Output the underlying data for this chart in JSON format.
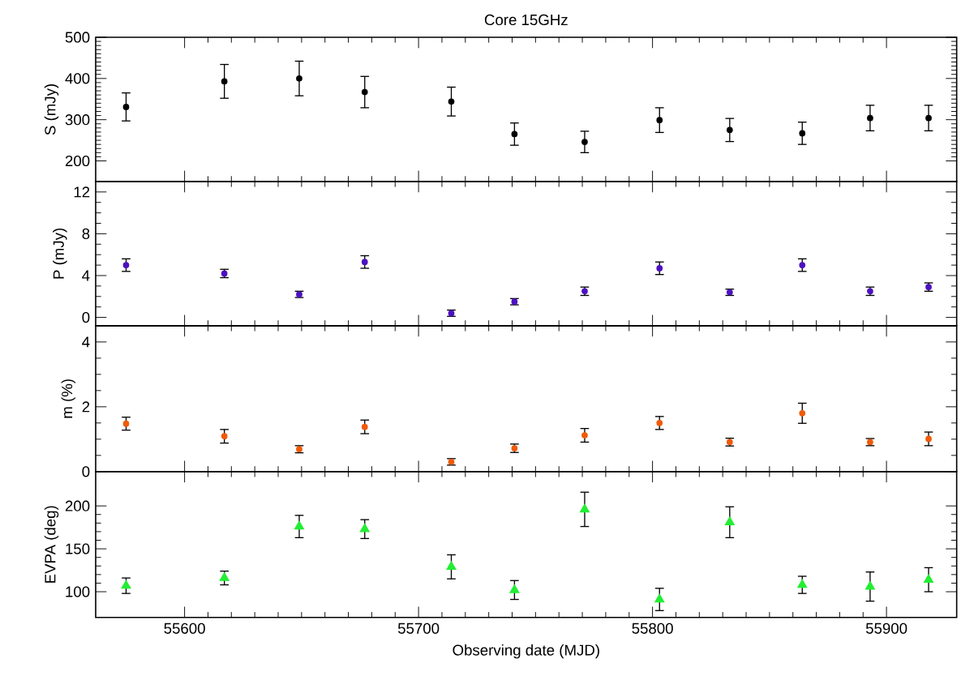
{
  "chart_data": [
    {
      "type": "scatter",
      "title": "Core 15GHz",
      "ylabel": "S (mJy)",
      "marker": "circle",
      "color": "#000000",
      "tick_labels": "y",
      "x": [
        55575,
        55617,
        55649,
        55677,
        55714,
        55741,
        55771,
        55803,
        55833,
        55864,
        55893,
        55918
      ],
      "values": [
        331,
        393,
        400,
        367,
        344,
        265,
        246,
        299,
        275,
        267,
        304,
        304
      ],
      "errors": [
        34,
        41,
        42,
        38,
        35,
        27,
        26,
        30,
        28,
        27,
        31,
        31
      ],
      "xlim": [
        55562,
        55930
      ],
      "xticks": [
        55600,
        55700,
        55800,
        55900
      ],
      "ylim": [
        150,
        500
      ],
      "yticks": [
        200,
        300,
        400,
        500
      ]
    },
    {
      "type": "scatter",
      "ylabel": "P (mJy)",
      "marker": "circle",
      "color": "#4c10c0",
      "tick_labels": "y",
      "x": [
        55575,
        55617,
        55649,
        55677,
        55714,
        55741,
        55771,
        55803,
        55833,
        55864,
        55893,
        55918
      ],
      "values": [
        5.0,
        4.2,
        2.2,
        5.3,
        0.4,
        1.5,
        2.5,
        4.7,
        2.4,
        5.0,
        2.5,
        2.9
      ],
      "errors": [
        0.6,
        0.4,
        0.3,
        0.6,
        0.3,
        0.3,
        0.4,
        0.6,
        0.3,
        0.6,
        0.4,
        0.4
      ],
      "xlim": [
        55562,
        55930
      ],
      "xticks": [
        55600,
        55700,
        55800,
        55900
      ],
      "ylim": [
        -0.8,
        13
      ],
      "yticks": [
        0,
        4,
        8,
        12
      ]
    },
    {
      "type": "scatter",
      "ylabel": "m (%)",
      "marker": "circle",
      "color": "#f05a0a",
      "tick_labels": "y",
      "x": [
        55575,
        55617,
        55649,
        55677,
        55714,
        55741,
        55771,
        55803,
        55833,
        55864,
        55893,
        55918
      ],
      "values": [
        1.48,
        1.09,
        0.69,
        1.38,
        0.3,
        0.72,
        1.12,
        1.5,
        0.91,
        1.8,
        0.91,
        1.01
      ],
      "errors": [
        0.2,
        0.21,
        0.11,
        0.21,
        0.1,
        0.13,
        0.21,
        0.2,
        0.12,
        0.31,
        0.11,
        0.21
      ],
      "xlim": [
        55562,
        55930
      ],
      "xticks": [
        55600,
        55700,
        55800,
        55900
      ],
      "ylim": [
        0,
        4.5
      ],
      "yticks": [
        0,
        2,
        4
      ]
    },
    {
      "type": "scatter",
      "ylabel": "EVPA (deg)",
      "xlabel": "Observing date (MJD)",
      "marker": "triangle",
      "color": "#22ee33",
      "x": [
        55575,
        55617,
        55649,
        55677,
        55714,
        55741,
        55771,
        55803,
        55833,
        55864,
        55893,
        55918
      ],
      "values": [
        107,
        116,
        176,
        173,
        129,
        102,
        196,
        91,
        181,
        108,
        106,
        114
      ],
      "errors": [
        9,
        8,
        13,
        11,
        14,
        11,
        20,
        13,
        18,
        10,
        17,
        14
      ],
      "xlim": [
        55562,
        55930
      ],
      "xticks": [
        55600,
        55700,
        55800,
        55900
      ],
      "ylim": [
        70,
        240
      ],
      "yticks": [
        100,
        150,
        200
      ]
    }
  ]
}
